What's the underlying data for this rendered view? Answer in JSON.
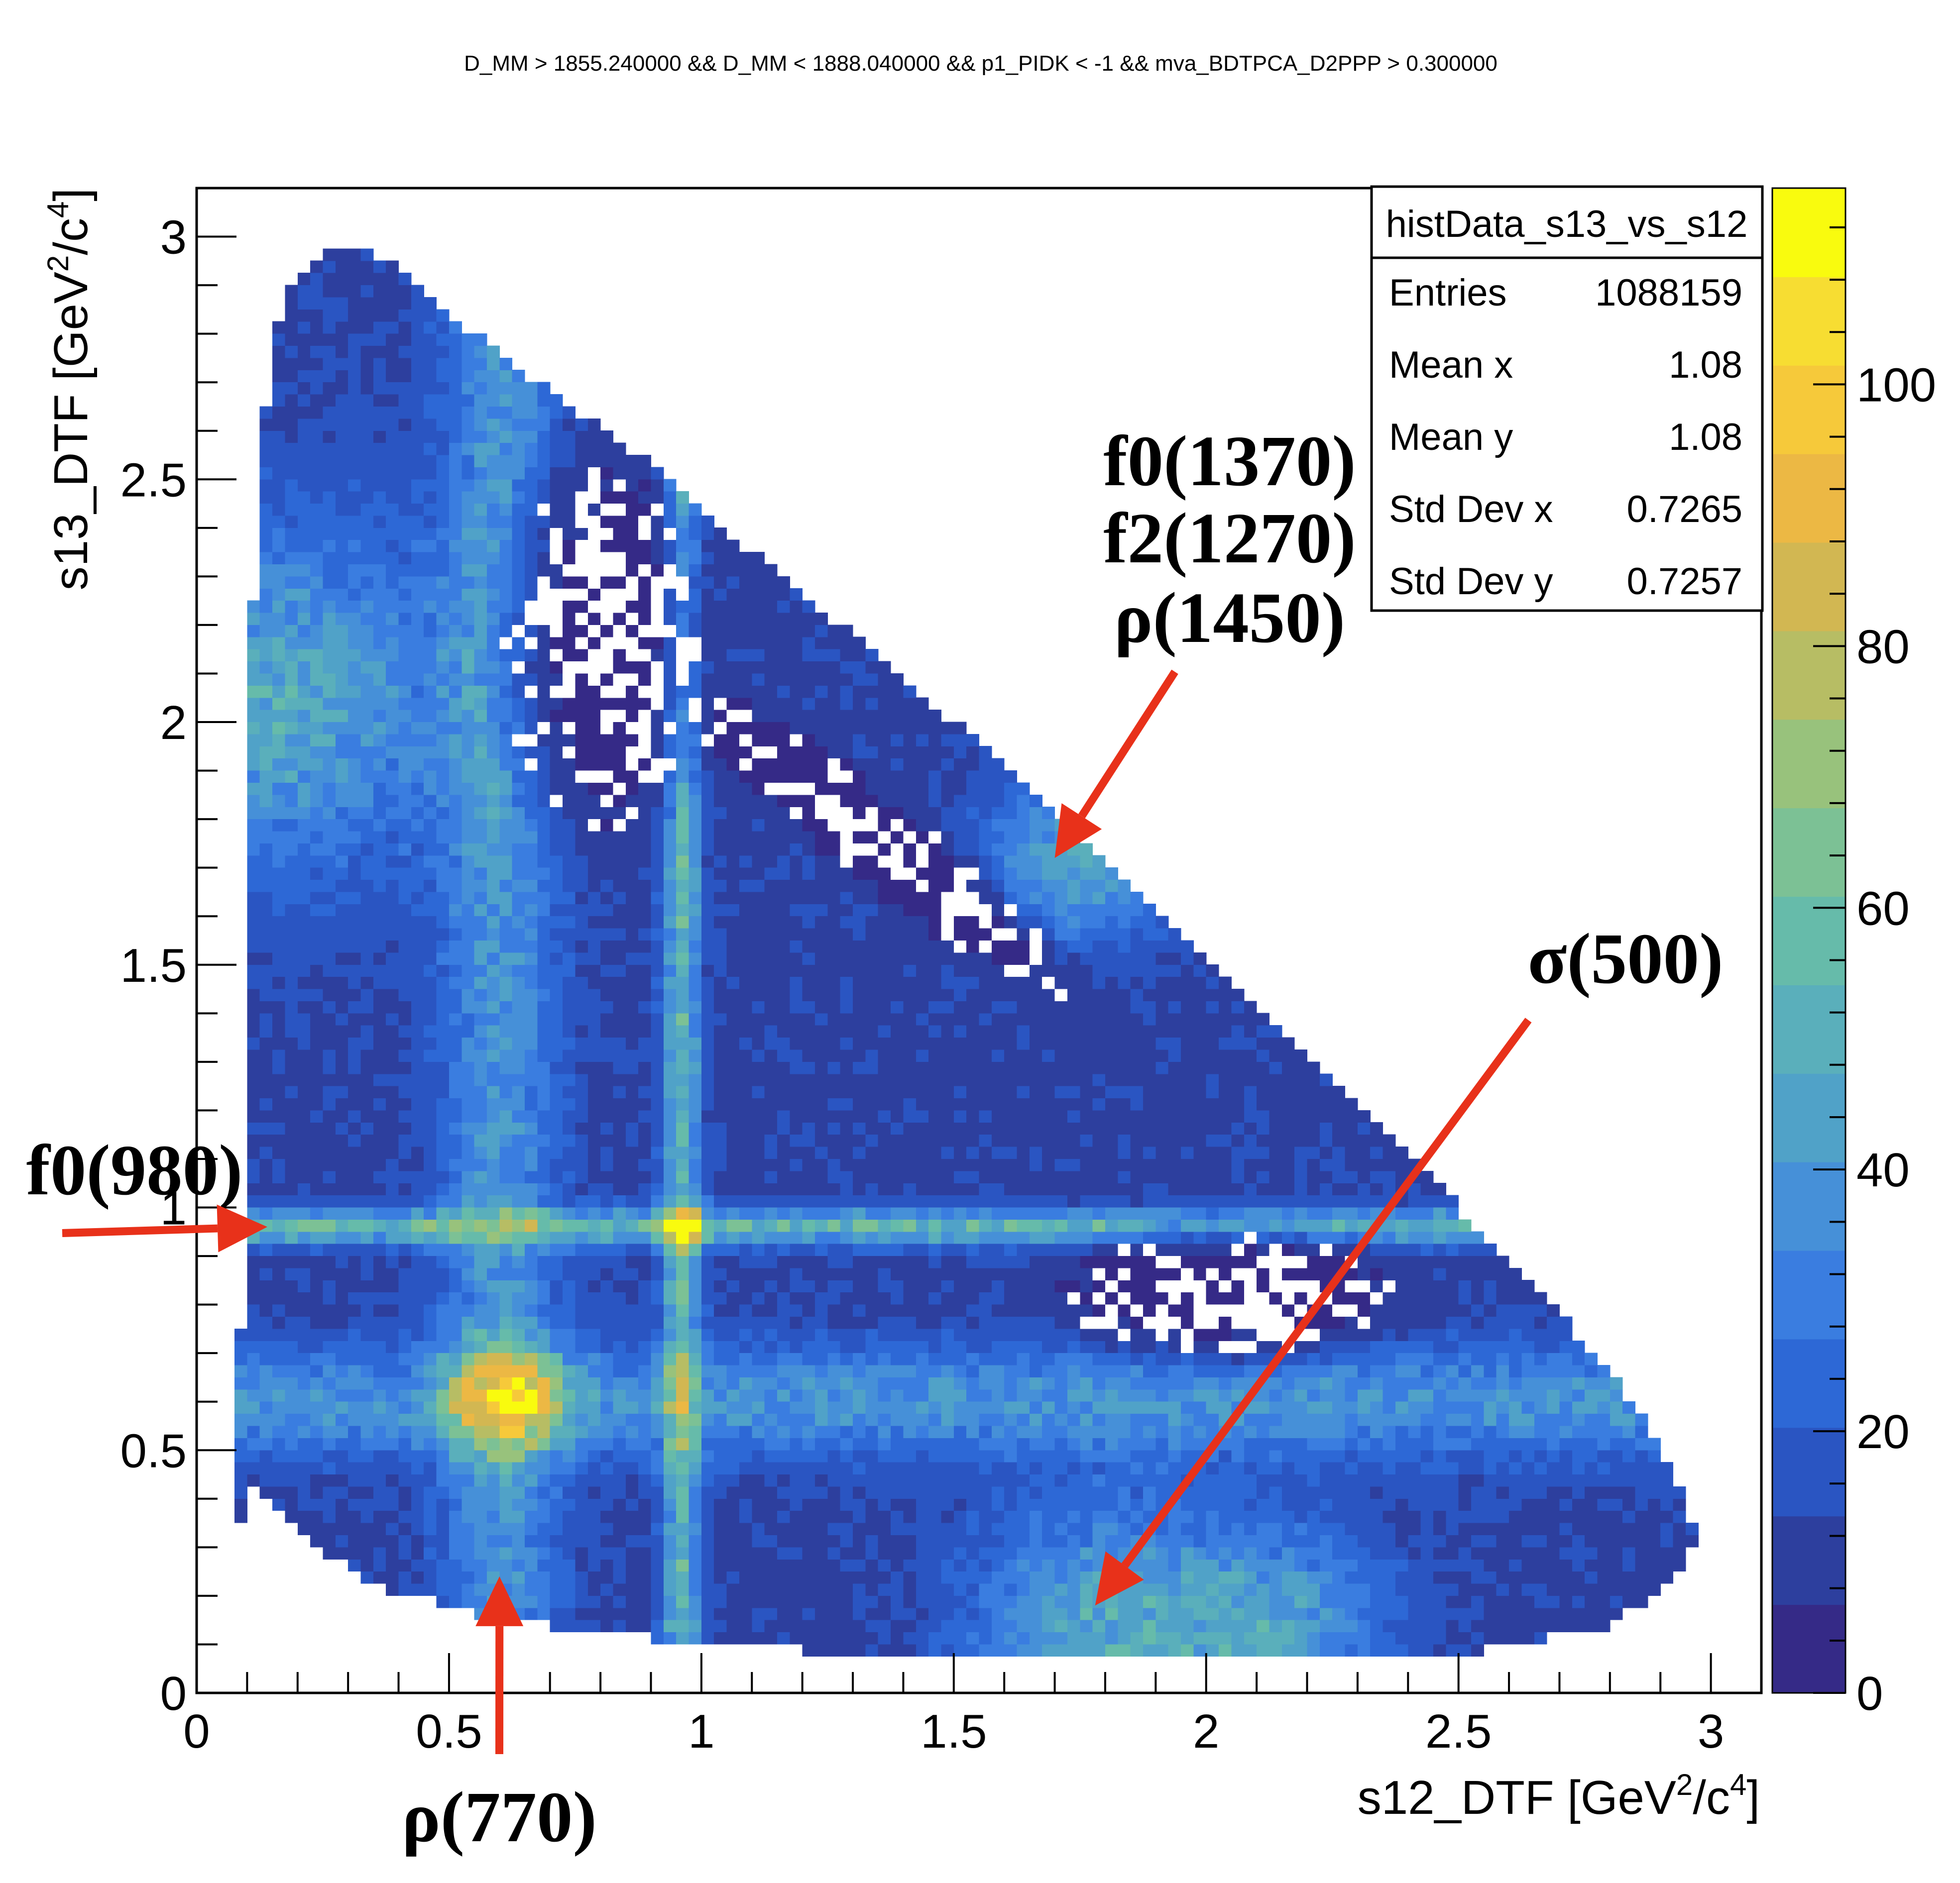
{
  "chart_data": {
    "type": "heatmap",
    "title": "D_MM > 1855.240000 && D_MM < 1888.040000 && p1_PIDK < -1 && mva_BDTPCA_D2PPP > 0.300000",
    "xlabel": {
      "base": "s12_DTF [GeV",
      "sup1": "2",
      "mid": "/c",
      "sup2": "4",
      "end": "]"
    },
    "ylabel": {
      "base": "s13_DTF [GeV",
      "sup1": "2",
      "mid": "/c",
      "sup2": "4",
      "end": "]"
    },
    "xlim": [
      0,
      3.1
    ],
    "ylim": [
      0,
      3.1
    ],
    "x_ticks": [
      "0",
      "0.5",
      "1",
      "1.5",
      "2",
      "2.5",
      "3"
    ],
    "x_tick_values": [
      0,
      0.5,
      1,
      1.5,
      2,
      2.5,
      3
    ],
    "y_ticks": [
      "0",
      "0.5",
      "1",
      "1.5",
      "2",
      "2.5",
      "3"
    ],
    "y_tick_values": [
      0,
      0.5,
      1,
      1.5,
      2,
      2.5,
      3
    ],
    "z_range": [
      0,
      115
    ],
    "z_ticks": [
      "0",
      "20",
      "40",
      "60",
      "80",
      "100"
    ],
    "z_tick_values": [
      0,
      20,
      40,
      60,
      80,
      100
    ],
    "boundary": [
      [
        0.08,
        0.3
      ],
      [
        0.09,
        0.9
      ],
      [
        0.1,
        1.6
      ],
      [
        0.11,
        2.2
      ],
      [
        0.13,
        2.6
      ],
      [
        0.17,
        2.88
      ],
      [
        0.26,
        2.98
      ],
      [
        0.35,
        2.97
      ],
      [
        0.5,
        2.84
      ],
      [
        0.7,
        2.68
      ],
      [
        0.9,
        2.53
      ],
      [
        1.1,
        2.35
      ],
      [
        1.3,
        2.18
      ],
      [
        1.5,
        2.0
      ],
      [
        1.7,
        1.8
      ],
      [
        1.9,
        1.6
      ],
      [
        2.1,
        1.4
      ],
      [
        2.3,
        1.2
      ],
      [
        2.5,
        1.0
      ],
      [
        2.7,
        0.78
      ],
      [
        2.86,
        0.58
      ],
      [
        2.95,
        0.4
      ],
      [
        2.97,
        0.3
      ],
      [
        2.92,
        0.22
      ],
      [
        2.8,
        0.14
      ],
      [
        2.5,
        0.08
      ],
      [
        2.0,
        0.07
      ],
      [
        1.5,
        0.07
      ],
      [
        1.0,
        0.1
      ],
      [
        0.6,
        0.15
      ],
      [
        0.35,
        0.22
      ],
      [
        0.18,
        0.35
      ],
      [
        0.1,
        0.45
      ]
    ],
    "bands": [
      {
        "name": "f0(980) horizontal",
        "axis": "y",
        "center": 0.96,
        "width": 0.025,
        "strength": 42
      },
      {
        "name": "f0(980) vertical",
        "axis": "x",
        "center": 0.96,
        "width": 0.025,
        "strength": 42
      },
      {
        "name": "rho(770) horizontal",
        "axis": "y",
        "center": 0.6,
        "width": 0.08,
        "strength": 26
      },
      {
        "name": "rho(770) vertical",
        "axis": "x",
        "center": 0.6,
        "width": 0.08,
        "strength": 26
      }
    ],
    "hotspots": [
      {
        "x": 0.62,
        "y": 0.6,
        "sigma": 0.07,
        "amp": 55
      },
      {
        "x": 0.96,
        "y": 0.96,
        "sigma": 0.03,
        "amp": 40
      },
      {
        "x": 0.15,
        "y": 2.05,
        "sigma": 0.25,
        "amp": 35
      },
      {
        "x": 1.8,
        "y": 0.13,
        "sigma": 0.18,
        "amp": 35
      },
      {
        "x": 2.15,
        "y": 0.13,
        "sigma": 0.15,
        "amp": 28
      },
      {
        "x": 1.75,
        "y": 1.72,
        "sigma": 0.12,
        "amp": 35
      }
    ],
    "voids": [
      {
        "x": 0.8,
        "y": 2.15,
        "rx": 0.2,
        "ry": 0.4
      },
      {
        "x": 1.35,
        "y": 1.75,
        "rx": 0.55,
        "ry": 0.09,
        "rot": -40
      },
      {
        "x": 2.05,
        "y": 0.82,
        "rx": 0.35,
        "ry": 0.14
      }
    ],
    "stats_box": {
      "name": "histData_s13_vs_s12",
      "rows": [
        {
          "label": "Entries",
          "value": "1088159"
        },
        {
          "label": "Mean x",
          "value": "1.08"
        },
        {
          "label": "Mean y",
          "value": "1.08"
        },
        {
          "label": "Std Dev x",
          "value": "0.7265"
        },
        {
          "label": "Std Dev y",
          "value": "0.7257"
        }
      ]
    },
    "annotations": [
      {
        "text": "f0(1370)",
        "arrow_to": [
          1.7,
          1.72
        ]
      },
      {
        "text": "f2(1270)"
      },
      {
        "text": "ρ(1450)"
      },
      {
        "text": "σ(500)",
        "arrow_to": [
          1.78,
          0.18
        ]
      },
      {
        "text": "f0(980)",
        "arrow_to": [
          0.14,
          0.96
        ]
      },
      {
        "text": "ρ(770)",
        "arrow_to": [
          0.6,
          0.24
        ]
      }
    ]
  },
  "colors": {
    "frame": "#000000",
    "arrow": "#e8311a",
    "empty": "#ffffff",
    "palette": [
      "#352a87",
      "#2d3f9e",
      "#2a55c2",
      "#2d68d6",
      "#3a7de0",
      "#4690d8",
      "#50a2c8",
      "#5aafbb",
      "#66bbaa",
      "#7cc195",
      "#98c27c",
      "#b7bd64",
      "#d2b752",
      "#ecb844",
      "#f6c93a",
      "#f7dd32",
      "#f9fb0e"
    ]
  }
}
